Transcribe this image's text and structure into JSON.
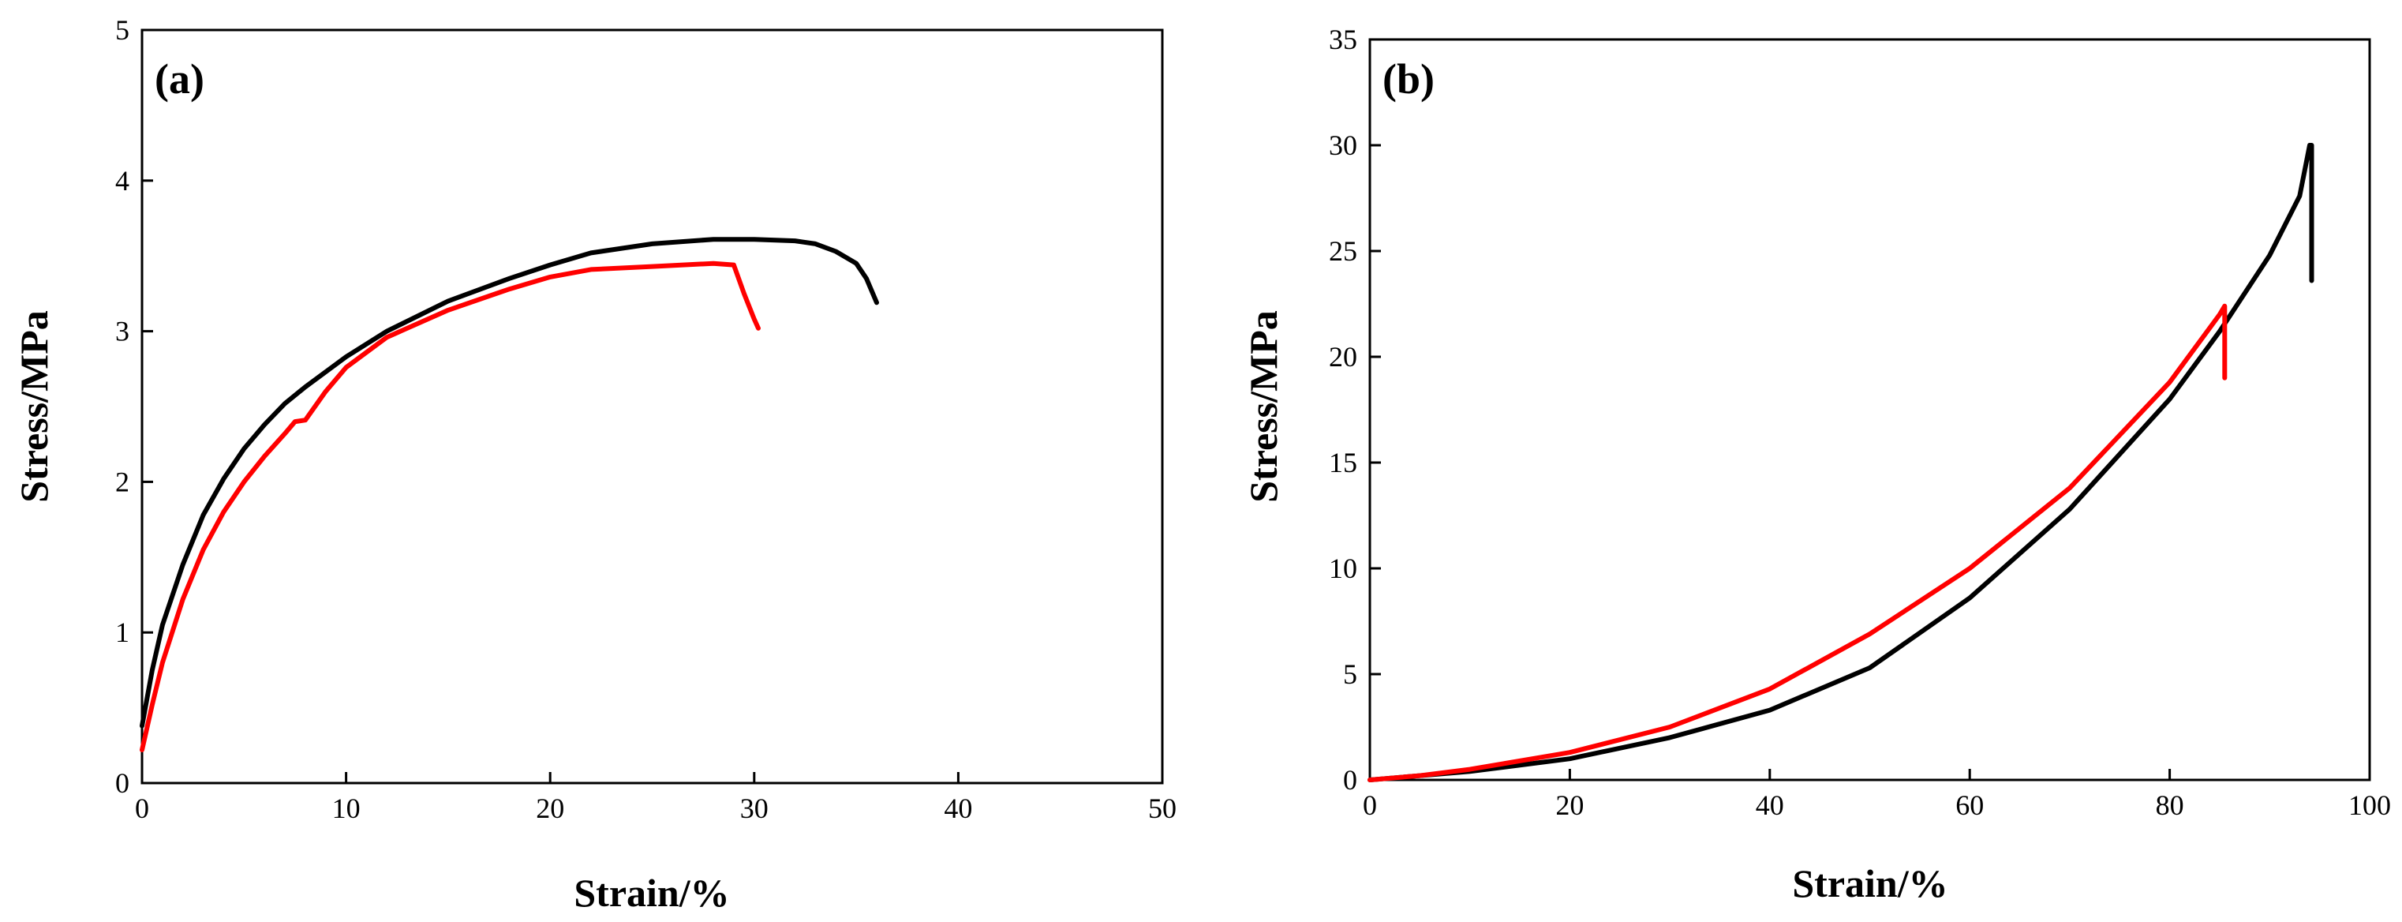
{
  "chart_data": [
    {
      "type": "line",
      "panel_label": "(a)",
      "xlabel": "Strain/%",
      "ylabel": "Stress/MPa",
      "xlim": [
        0,
        50
      ],
      "ylim": [
        0,
        5
      ],
      "xticks": [
        0,
        10,
        20,
        30,
        40,
        50
      ],
      "yticks": [
        0,
        1,
        2,
        3,
        4,
        5
      ],
      "xtick_labels": [
        "0",
        "10",
        "20",
        "30",
        "40",
        "50"
      ],
      "ytick_labels": [
        "0",
        "1",
        "2",
        "3",
        "4",
        "5"
      ],
      "grid": false,
      "series": [
        {
          "name": "black",
          "color": "#000000",
          "x": [
            0,
            0.5,
            1,
            2,
            3,
            4,
            5,
            6,
            7,
            8,
            10,
            12,
            15,
            18,
            20,
            22,
            25,
            28,
            30,
            32,
            33,
            34,
            35,
            35.5,
            36
          ],
          "y": [
            0.38,
            0.75,
            1.05,
            1.45,
            1.78,
            2.02,
            2.22,
            2.38,
            2.52,
            2.63,
            2.83,
            3.0,
            3.2,
            3.35,
            3.44,
            3.52,
            3.58,
            3.61,
            3.61,
            3.6,
            3.58,
            3.53,
            3.45,
            3.35,
            3.19
          ]
        },
        {
          "name": "red",
          "color": "#ff0000",
          "x": [
            0,
            0.5,
            1,
            2,
            3,
            4,
            5,
            6,
            7,
            7.5,
            8,
            9,
            10,
            12,
            15,
            18,
            20,
            22,
            25,
            28,
            29,
            29.5,
            30,
            30.2
          ],
          "y": [
            0.22,
            0.52,
            0.8,
            1.22,
            1.55,
            1.8,
            2.0,
            2.17,
            2.32,
            2.4,
            2.41,
            2.6,
            2.76,
            2.96,
            3.14,
            3.28,
            3.36,
            3.41,
            3.43,
            3.45,
            3.44,
            3.25,
            3.08,
            3.02
          ]
        }
      ]
    },
    {
      "type": "line",
      "panel_label": "(b)",
      "xlabel": "Strain/%",
      "ylabel": "Stress/MPa",
      "xlim": [
        0,
        100
      ],
      "ylim": [
        0,
        35
      ],
      "xticks": [
        0,
        20,
        40,
        60,
        80,
        100
      ],
      "yticks": [
        0,
        5,
        10,
        15,
        20,
        25,
        30,
        35
      ],
      "xtick_labels": [
        "0",
        "20",
        "40",
        "60",
        "80",
        "100"
      ],
      "ytick_labels": [
        "0",
        "5",
        "10",
        "15",
        "20",
        "25",
        "30",
        "35"
      ],
      "grid": false,
      "series": [
        {
          "name": "black",
          "color": "#000000",
          "x": [
            0,
            5,
            10,
            20,
            30,
            40,
            50,
            60,
            70,
            80,
            85,
            90,
            93,
            94,
            94.2,
            94.2
          ],
          "y": [
            0,
            0.2,
            0.4,
            1.0,
            2.0,
            3.3,
            5.3,
            8.6,
            12.8,
            18.0,
            21.2,
            24.8,
            27.6,
            30.0,
            30.0,
            23.6
          ]
        },
        {
          "name": "red",
          "color": "#ff0000",
          "x": [
            0,
            5,
            10,
            20,
            30,
            40,
            50,
            60,
            70,
            80,
            85,
            85.5,
            85.5
          ],
          "y": [
            0,
            0.2,
            0.5,
            1.3,
            2.5,
            4.3,
            6.9,
            10.0,
            13.8,
            18.8,
            22.0,
            22.4,
            19.0
          ]
        }
      ]
    }
  ]
}
